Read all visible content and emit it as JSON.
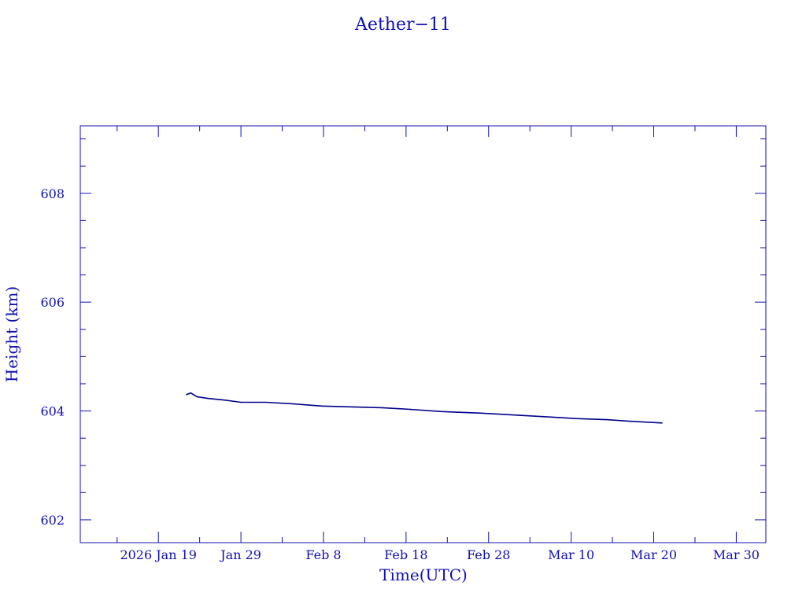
{
  "chart_data": {
    "type": "line",
    "title": "Aether−11",
    "xlabel": "Time(UTC)",
    "ylabel": "Height (km)",
    "xlim": [
      "2026-01-09T13:00:00Z",
      "2026-04-02T14:00:00Z"
    ],
    "ylim": [
      601.58,
      609.24
    ],
    "grid": false,
    "color": "#00008b",
    "axis_color": "#1010b0",
    "x_ticks": [
      {
        "t": "2026-01-19T00:00:00Z",
        "label": "2026 Jan 19"
      },
      {
        "t": "2026-01-29T00:00:00Z",
        "label": "Jan 29"
      },
      {
        "t": "2026-02-08T00:00:00Z",
        "label": "Feb  8"
      },
      {
        "t": "2026-02-18T00:00:00Z",
        "label": "Feb 18"
      },
      {
        "t": "2026-02-28T00:00:00Z",
        "label": "Feb 28"
      },
      {
        "t": "2026-03-10T00:00:00Z",
        "label": "Mar 10"
      },
      {
        "t": "2026-03-20T00:00:00Z",
        "label": "Mar 20"
      },
      {
        "t": "2026-03-30T00:00:00Z",
        "label": "Mar 30"
      }
    ],
    "y_ticks": [
      602,
      604,
      606,
      608
    ],
    "series": [
      {
        "x": [
          "2026-01-22T10:00:00Z",
          "2026-01-22T22:00:00Z",
          "2026-01-23T17:00:00Z",
          "2026-01-25T00:00:00Z",
          "2026-01-27T00:00:00Z",
          "2026-01-29T00:00:00Z",
          "2026-02-01T00:00:00Z",
          "2026-02-04T10:00:00Z",
          "2026-02-07T19:00:00Z",
          "2026-02-12T10:00:00Z",
          "2026-02-15T02:00:00Z",
          "2026-02-18T12:00:00Z",
          "2026-02-22T07:00:00Z",
          "2026-02-27T02:00:00Z",
          "2026-03-03T19:00:00Z",
          "2026-03-08T14:00:00Z",
          "2026-03-10T12:00:00Z",
          "2026-03-14T07:00:00Z",
          "2026-03-17T05:00:00Z",
          "2026-03-21T00:00:00Z"
        ],
        "y": [
          604.3,
          604.33,
          604.26,
          604.23,
          604.2,
          604.16,
          604.16,
          604.13,
          604.09,
          604.07,
          604.06,
          604.03,
          603.99,
          603.96,
          603.92,
          603.88,
          603.86,
          603.84,
          603.81,
          603.78
        ]
      }
    ]
  }
}
